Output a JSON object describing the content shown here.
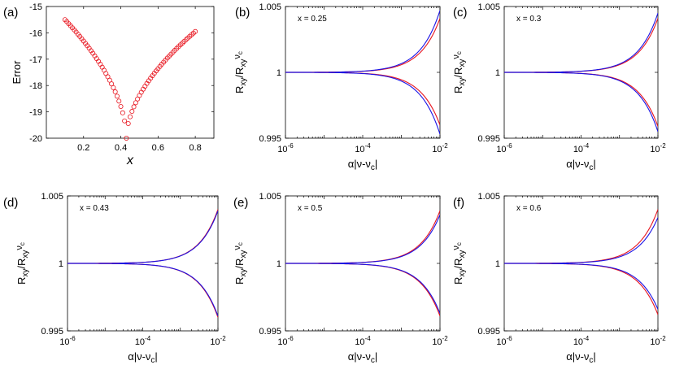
{
  "colors": {
    "red": "#e8141e",
    "blue": "#1a12e6"
  },
  "chart_data": [
    {
      "id": "a",
      "panel_label": "(a)",
      "type": "scatter",
      "marker": "circle-open",
      "color": "#e8141e",
      "xlabel": "x",
      "ylabel": "Error",
      "xlim": [
        0,
        0.9
      ],
      "ylim": [
        -20,
        -15
      ],
      "xticks": [
        0.2,
        0.4,
        0.6,
        0.8
      ],
      "xtick_labels": [
        "0.2",
        "0.4",
        "0.6",
        "0.8"
      ],
      "yticks": [
        -20,
        -19,
        -18,
        -17,
        -16,
        -15
      ],
      "ytick_labels": [
        "-20",
        "-19",
        "-18",
        "-17",
        "-16",
        "-15"
      ],
      "curve": {
        "x_start": 0.1,
        "x_end": 0.8,
        "step": 0.01,
        "x_min": 0.43,
        "left_value": -15.5,
        "right_value": -15.95,
        "min_value": -20.0
      }
    },
    {
      "id": "b",
      "panel_label": "(b)",
      "type": "line",
      "annotation": "x = 0.25",
      "xlabel": "α|ν-ν_c|",
      "ylabel": "R_xy/R_xyν_c",
      "xlim_log10": [
        -6,
        -2
      ],
      "ylim": [
        0.995,
        1.005
      ],
      "xtick_labels": [
        "10^-6",
        "10^-4",
        "10^-2"
      ],
      "ytick_labels": [
        "0.995",
        "1",
        "1.005"
      ],
      "series": [
        {
          "name": "upper-red",
          "color": "#e8141e",
          "end_value": 1.0041
        },
        {
          "name": "upper-blue",
          "color": "#1a12e6",
          "end_value": 1.0047
        },
        {
          "name": "lower-red",
          "color": "#e8141e",
          "end_value": 0.996
        },
        {
          "name": "lower-blue",
          "color": "#1a12e6",
          "end_value": 0.9953
        }
      ]
    },
    {
      "id": "c",
      "panel_label": "(c)",
      "type": "line",
      "annotation": "x = 0.3",
      "xlabel": "α|ν-ν_c|",
      "ylabel": "R_xy/R_xyν_c",
      "xlim_log10": [
        -6,
        -2
      ],
      "ylim": [
        0.995,
        1.005
      ],
      "xtick_labels": [
        "10^-6",
        "10^-4",
        "10^-2"
      ],
      "ytick_labels": [
        "0.995",
        "1",
        "1.005"
      ],
      "series": [
        {
          "name": "upper-red",
          "color": "#e8141e",
          "end_value": 1.0041
        },
        {
          "name": "upper-blue",
          "color": "#1a12e6",
          "end_value": 1.0045
        },
        {
          "name": "lower-red",
          "color": "#e8141e",
          "end_value": 0.9959
        },
        {
          "name": "lower-blue",
          "color": "#1a12e6",
          "end_value": 0.9955
        }
      ]
    },
    {
      "id": "d",
      "panel_label": "(d)",
      "type": "line",
      "annotation": "x = 0.43",
      "xlabel": "α|ν-ν_c|",
      "ylabel": "R_xy/R_xyν_c",
      "xlim_log10": [
        -6,
        -2
      ],
      "ylim": [
        0.995,
        1.005
      ],
      "xtick_labels": [
        "10^-6",
        "10^-4",
        "10^-2"
      ],
      "ytick_labels": [
        "0.995",
        "1",
        "1.005"
      ],
      "series": [
        {
          "name": "upper-red",
          "color": "#e8141e",
          "end_value": 1.004
        },
        {
          "name": "upper-blue",
          "color": "#1a12e6",
          "end_value": 1.0039
        },
        {
          "name": "lower-red",
          "color": "#e8141e",
          "end_value": 0.996
        },
        {
          "name": "lower-blue",
          "color": "#1a12e6",
          "end_value": 0.9961
        }
      ]
    },
    {
      "id": "e",
      "panel_label": "(e)",
      "type": "line",
      "annotation": "x = 0.5",
      "xlabel": "α|ν-ν_c|",
      "ylabel": "R_xy/R_xyν_c",
      "xlim_log10": [
        -6,
        -2
      ],
      "ylim": [
        0.995,
        1.005
      ],
      "xtick_labels": [
        "10^-6",
        "10^-4",
        "10^-2"
      ],
      "ytick_labels": [
        "0.995",
        "1",
        "1.005"
      ],
      "series": [
        {
          "name": "upper-red",
          "color": "#e8141e",
          "end_value": 1.0039
        },
        {
          "name": "upper-blue",
          "color": "#1a12e6",
          "end_value": 1.0036
        },
        {
          "name": "lower-red",
          "color": "#e8141e",
          "end_value": 0.9961
        },
        {
          "name": "lower-blue",
          "color": "#1a12e6",
          "end_value": 0.9963
        }
      ]
    },
    {
      "id": "f",
      "panel_label": "(f)",
      "type": "line",
      "annotation": "x = 0.6",
      "xlabel": "α|ν-ν_c|",
      "ylabel": "R_xy/R_xyν_c",
      "xlim_log10": [
        -6,
        -2
      ],
      "ylim": [
        0.995,
        1.005
      ],
      "xtick_labels": [
        "10^-6",
        "10^-4",
        "10^-2"
      ],
      "ytick_labels": [
        "0.995",
        "1",
        "1.005"
      ],
      "series": [
        {
          "name": "upper-red",
          "color": "#e8141e",
          "end_value": 1.004
        },
        {
          "name": "upper-blue",
          "color": "#1a12e6",
          "end_value": 1.0034
        },
        {
          "name": "lower-red",
          "color": "#e8141e",
          "end_value": 0.9962
        },
        {
          "name": "lower-blue",
          "color": "#1a12e6",
          "end_value": 0.9966
        }
      ]
    }
  ]
}
